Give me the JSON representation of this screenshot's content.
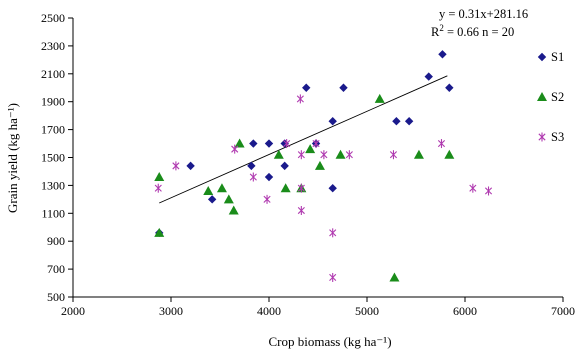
{
  "chart_data": {
    "type": "scatter",
    "xlabel": "Crop biomass (kg ha⁻¹)",
    "ylabel": "Grain yield (kg ha⁻¹)",
    "xlim": [
      2000,
      7000
    ],
    "ylim": [
      500,
      2500
    ],
    "x_ticks": [
      "2000",
      "3000",
      "4000",
      "5000",
      "6000",
      "7000"
    ],
    "y_ticks": [
      "500",
      "700",
      "900",
      "1100",
      "1300",
      "1500",
      "1700",
      "1900",
      "2100",
      "2300",
      "2500"
    ],
    "grid": false,
    "legend_placement": "right",
    "annotation": {
      "line1": "y = 0.31x+281.16",
      "line2": "R² = 0.66 n = 20"
    },
    "trendline": {
      "slope": 0.31,
      "intercept": 281.16,
      "x_range": [
        2880,
        5820
      ]
    },
    "colors": {
      "S1": "#1a1a8c",
      "S2": "#1a8c1a",
      "S3": "#b03ab0",
      "trend": "#000000"
    },
    "series": [
      {
        "name": "S1",
        "marker": "diamond",
        "points": [
          [
            2880,
            960
          ],
          [
            3200,
            1440
          ],
          [
            3420,
            1200
          ],
          [
            3820,
            1440
          ],
          [
            3840,
            1600
          ],
          [
            4000,
            1600
          ],
          [
            4000,
            1360
          ],
          [
            4160,
            1600
          ],
          [
            4160,
            1440
          ],
          [
            4380,
            2000
          ],
          [
            4480,
            1600
          ],
          [
            4650,
            1760
          ],
          [
            4650,
            1280
          ],
          [
            4760,
            2000
          ],
          [
            5300,
            1760
          ],
          [
            5430,
            1760
          ],
          [
            5630,
            2080
          ],
          [
            5770,
            2240
          ],
          [
            5840,
            2000
          ]
        ]
      },
      {
        "name": "S2",
        "marker": "triangle",
        "points": [
          [
            2880,
            1360
          ],
          [
            2880,
            960
          ],
          [
            3380,
            1260
          ],
          [
            3520,
            1280
          ],
          [
            3590,
            1200
          ],
          [
            3640,
            1120
          ],
          [
            3700,
            1600
          ],
          [
            4100,
            1520
          ],
          [
            4170,
            1280
          ],
          [
            4330,
            1280
          ],
          [
            4420,
            1560
          ],
          [
            4520,
            1440
          ],
          [
            4730,
            1520
          ],
          [
            5130,
            1920
          ],
          [
            5280,
            640
          ],
          [
            5530,
            1520
          ],
          [
            5840,
            1520
          ]
        ]
      },
      {
        "name": "S3",
        "marker": "asterisk",
        "points": [
          [
            2870,
            1280
          ],
          [
            3050,
            1440
          ],
          [
            3650,
            1560
          ],
          [
            3840,
            1360
          ],
          [
            3980,
            1200
          ],
          [
            4180,
            1600
          ],
          [
            4320,
            1920
          ],
          [
            4330,
            1520
          ],
          [
            4330,
            1280
          ],
          [
            4330,
            1120
          ],
          [
            4480,
            1600
          ],
          [
            4560,
            1520
          ],
          [
            4650,
            960
          ],
          [
            4650,
            640
          ],
          [
            4820,
            1520
          ],
          [
            5270,
            1520
          ],
          [
            5760,
            1600
          ],
          [
            6080,
            1280
          ],
          [
            6240,
            1260
          ]
        ]
      }
    ]
  }
}
